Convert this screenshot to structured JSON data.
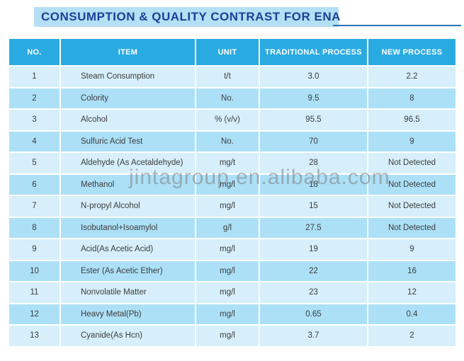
{
  "title": "CONSUMPTION & QUALITY CONTRAST FOR ENA",
  "watermark": "jintagroup.en.alibaba.com",
  "colors": {
    "header_bg": "#29ABE2",
    "row_light": "#D6EFFB",
    "row_dark": "#ACE0F7",
    "title_bg": "#B5DFF4",
    "title_text": "#1C4098",
    "rule": "#2E74B5"
  },
  "table": {
    "columns": [
      "NO.",
      "ITEM",
      "UNIT",
      "TRADITIONAL PROCESS",
      "NEW PROCESS"
    ],
    "rows": [
      {
        "no": "1",
        "item": "Steam Consumption",
        "unit": "t/t",
        "traditional": "3.0",
        "new": "2.2"
      },
      {
        "no": "2",
        "item": "Colority",
        "unit": "No.",
        "traditional": "9.5",
        "new": "8"
      },
      {
        "no": "3",
        "item": "Alcohol",
        "unit": "% (v/v)",
        "traditional": "95.5",
        "new": "96.5"
      },
      {
        "no": "4",
        "item": "Sulfuric Acid Test",
        "unit": "No.",
        "traditional": "70",
        "new": "9"
      },
      {
        "no": "5",
        "item": "Aldehyde (As Acetaldehyde)",
        "unit": "mg/t",
        "traditional": "28",
        "new": "Not Detected"
      },
      {
        "no": "6",
        "item": "Methanol",
        "unit": "mg/l",
        "traditional": "18",
        "new": "Not Detected"
      },
      {
        "no": "7",
        "item": "N-propyl Alcohol",
        "unit": "mg/l",
        "traditional": "15",
        "new": "Not Detected"
      },
      {
        "no": "8",
        "item": "Isobutanol+Isoamylol",
        "unit": "g/l",
        "traditional": "27.5",
        "new": "Not Detected"
      },
      {
        "no": "9",
        "item": "Acid(As Acetic Acid)",
        "unit": "mg/l",
        "traditional": "19",
        "new": "9"
      },
      {
        "no": "10",
        "item": "Ester (As Acetic Ether)",
        "unit": "mg/l",
        "traditional": "22",
        "new": "16"
      },
      {
        "no": "11",
        "item": "Nonvolatile Matter",
        "unit": "mg/l",
        "traditional": "23",
        "new": "12"
      },
      {
        "no": "12",
        "item": "Heavy Metal(Pb)",
        "unit": "mg/l",
        "traditional": "0.65",
        "new": "0.4"
      },
      {
        "no": "13",
        "item": "Cyanide(As Hcn)",
        "unit": "mg/l",
        "traditional": "3.7",
        "new": "2"
      }
    ]
  }
}
